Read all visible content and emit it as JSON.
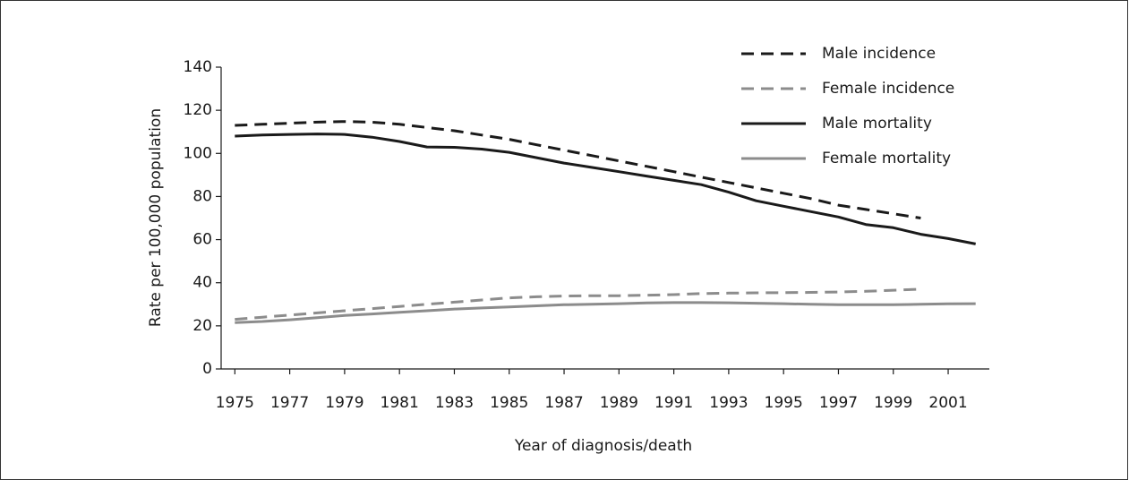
{
  "chart_data": {
    "type": "line",
    "x_label": "Year of diagnosis/death",
    "y_label": "Rate per 100,000 population",
    "x": [
      1975,
      1976,
      1977,
      1978,
      1979,
      1980,
      1981,
      1982,
      1983,
      1984,
      1985,
      1986,
      1987,
      1988,
      1989,
      1990,
      1991,
      1992,
      1993,
      1994,
      1995,
      1996,
      1997,
      1998,
      1999,
      2000,
      2001,
      2002
    ],
    "series": [
      {
        "name": "Male incidence",
        "color": "#1a1a1a",
        "dash": true,
        "values": [
          113,
          113.5,
          114,
          114.5,
          114.8,
          114.5,
          113.5,
          112,
          110.5,
          108.5,
          106.5,
          104,
          101.5,
          99,
          96.5,
          94,
          91.5,
          89,
          86.5,
          84,
          81.5,
          79,
          76,
          74,
          72,
          70,
          null,
          null
        ]
      },
      {
        "name": "Female incidence",
        "color": "#8c8c8c",
        "dash": true,
        "values": [
          23,
          24,
          25,
          26,
          27,
          28,
          29,
          30,
          31,
          32,
          33,
          33.5,
          33.8,
          34,
          34,
          34.2,
          34.5,
          35,
          35.2,
          35.3,
          35.4,
          35.5,
          35.7,
          36,
          36.5,
          37,
          null,
          null
        ]
      },
      {
        "name": "Male mortality",
        "color": "#1a1a1a",
        "dash": false,
        "values": [
          108,
          108.5,
          108.8,
          109,
          108.8,
          107.5,
          105.5,
          103,
          102.8,
          102,
          100.5,
          98,
          95.5,
          93.5,
          91.5,
          89.5,
          87.5,
          85.5,
          82,
          78,
          75.5,
          73,
          70.5,
          67,
          65.5,
          62.5,
          60.5,
          58
        ]
      },
      {
        "name": "Female mortality",
        "color": "#8c8c8c",
        "dash": false,
        "values": [
          21.5,
          22,
          22.8,
          23.8,
          24.8,
          25.5,
          26.3,
          27,
          27.8,
          28.3,
          28.8,
          29.3,
          29.8,
          30,
          30.3,
          30.6,
          30.8,
          30.8,
          30.7,
          30.5,
          30.3,
          30,
          29.8,
          29.8,
          29.8,
          30,
          30.2,
          30.3
        ]
      }
    ],
    "xlim": [
      1974.5,
      2002.5
    ],
    "xticks": [
      1975,
      1977,
      1979,
      1981,
      1983,
      1985,
      1987,
      1989,
      1991,
      1993,
      1995,
      1997,
      1999,
      2001
    ],
    "ylim": [
      0,
      140
    ],
    "yticks": [
      0,
      20,
      40,
      60,
      80,
      100,
      120,
      140
    ],
    "legend": "upper right"
  }
}
